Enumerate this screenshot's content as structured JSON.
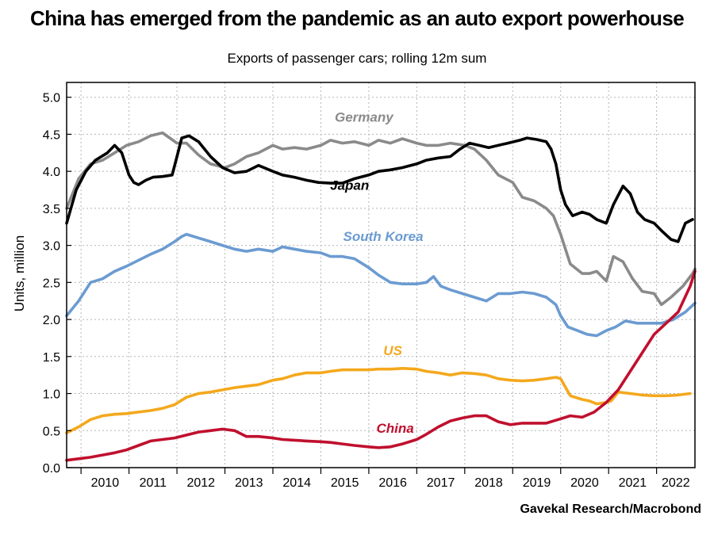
{
  "title": "China has emerged from the pandemic as an auto export powerhouse",
  "subtitle": "Exports of passenger cars; rolling 12m sum",
  "source": "Gavekal Research/Macrobond",
  "chart_data": {
    "type": "line",
    "title": "China has emerged from the pandemic as an auto export powerhouse",
    "subtitle": "Exports of passenger cars; rolling 12m sum",
    "ylabel": "Units, million",
    "xlabel": "",
    "ylim": [
      0,
      5.2
    ],
    "xlim": [
      2009.7,
      2022.8
    ],
    "yticks": [
      "0.0",
      "0.5",
      "1.0",
      "1.5",
      "2.0",
      "2.5",
      "3.0",
      "3.5",
      "4.0",
      "4.5",
      "5.0"
    ],
    "xticks": [
      "2010",
      "2011",
      "2012",
      "2013",
      "2014",
      "2015",
      "2016",
      "2017",
      "2018",
      "2019",
      "2020",
      "2021",
      "2022"
    ],
    "grid": true,
    "legend": "none (series labelled inline)",
    "series": [
      {
        "name": "Germany",
        "color": "#8a8a8a",
        "x": [
          2009.7,
          2009.95,
          2010.2,
          2010.45,
          2010.7,
          2010.95,
          2011.2,
          2011.45,
          2011.7,
          2011.85,
          2012.0,
          2012.2,
          2012.45,
          2012.7,
          2013.0,
          2013.2,
          2013.45,
          2013.7,
          2014.0,
          2014.2,
          2014.45,
          2014.7,
          2015.0,
          2015.2,
          2015.45,
          2015.7,
          2016.0,
          2016.2,
          2016.45,
          2016.7,
          2017.0,
          2017.2,
          2017.45,
          2017.7,
          2018.0,
          2018.2,
          2018.45,
          2018.7,
          2019.0,
          2019.2,
          2019.45,
          2019.7,
          2019.85,
          2020.0,
          2020.2,
          2020.45,
          2020.6,
          2020.75,
          2020.95,
          2021.1,
          2021.3,
          2021.5,
          2021.7,
          2021.95,
          2022.1,
          2022.3,
          2022.55,
          2022.75,
          2022.8
        ],
        "values": [
          3.5,
          3.9,
          4.1,
          4.15,
          4.25,
          4.35,
          4.4,
          4.48,
          4.52,
          4.45,
          4.38,
          4.38,
          4.22,
          4.1,
          4.05,
          4.1,
          4.2,
          4.25,
          4.35,
          4.3,
          4.32,
          4.3,
          4.35,
          4.42,
          4.38,
          4.4,
          4.35,
          4.42,
          4.38,
          4.44,
          4.38,
          4.35,
          4.35,
          4.38,
          4.35,
          4.3,
          4.15,
          3.95,
          3.85,
          3.65,
          3.6,
          3.5,
          3.4,
          3.15,
          2.75,
          2.62,
          2.62,
          2.65,
          2.52,
          2.85,
          2.78,
          2.55,
          2.38,
          2.35,
          2.2,
          2.3,
          2.45,
          2.62,
          2.68
        ]
      },
      {
        "name": "Japan",
        "color": "#000000",
        "x": [
          2009.7,
          2009.9,
          2010.1,
          2010.3,
          2010.55,
          2010.7,
          2010.85,
          2011.0,
          2011.1,
          2011.2,
          2011.35,
          2011.5,
          2011.7,
          2011.9,
          2012.0,
          2012.1,
          2012.25,
          2012.45,
          2012.7,
          2012.95,
          2013.2,
          2013.45,
          2013.7,
          2014.0,
          2014.2,
          2014.45,
          2014.7,
          2014.95,
          2015.2,
          2015.45,
          2015.7,
          2016.0,
          2016.2,
          2016.45,
          2016.7,
          2017.0,
          2017.2,
          2017.45,
          2017.7,
          2017.9,
          2018.1,
          2018.3,
          2018.5,
          2018.7,
          2018.9,
          2019.15,
          2019.3,
          2019.5,
          2019.7,
          2019.8,
          2019.9,
          2020.0,
          2020.1,
          2020.25,
          2020.45,
          2020.6,
          2020.75,
          2020.95,
          2021.1,
          2021.3,
          2021.45,
          2021.6,
          2021.75,
          2021.95,
          2022.1,
          2022.3,
          2022.45,
          2022.6,
          2022.75
        ],
        "values": [
          3.3,
          3.75,
          4.0,
          4.15,
          4.25,
          4.35,
          4.25,
          3.95,
          3.85,
          3.82,
          3.88,
          3.92,
          3.93,
          3.95,
          4.2,
          4.45,
          4.48,
          4.4,
          4.2,
          4.05,
          3.98,
          4.0,
          4.08,
          4.0,
          3.95,
          3.92,
          3.88,
          3.85,
          3.84,
          3.84,
          3.9,
          3.95,
          4.0,
          4.02,
          4.05,
          4.1,
          4.15,
          4.18,
          4.2,
          4.3,
          4.38,
          4.35,
          4.32,
          4.35,
          4.38,
          4.42,
          4.45,
          4.43,
          4.4,
          4.3,
          4.1,
          3.75,
          3.55,
          3.4,
          3.45,
          3.42,
          3.35,
          3.3,
          3.55,
          3.8,
          3.7,
          3.45,
          3.35,
          3.3,
          3.2,
          3.08,
          3.05,
          3.3,
          3.35
        ]
      },
      {
        "name": "South Korea",
        "color": "#6b9bd1",
        "x": [
          2009.7,
          2009.95,
          2010.2,
          2010.45,
          2010.7,
          2010.95,
          2011.2,
          2011.45,
          2011.7,
          2011.95,
          2012.1,
          2012.2,
          2012.45,
          2012.7,
          2012.95,
          2013.2,
          2013.45,
          2013.7,
          2014.0,
          2014.2,
          2014.45,
          2014.7,
          2015.0,
          2015.2,
          2015.45,
          2015.7,
          2016.0,
          2016.2,
          2016.45,
          2016.7,
          2017.0,
          2017.2,
          2017.35,
          2017.5,
          2017.7,
          2017.95,
          2018.2,
          2018.45,
          2018.7,
          2018.95,
          2019.2,
          2019.45,
          2019.7,
          2019.9,
          2020.0,
          2020.15,
          2020.35,
          2020.55,
          2020.75,
          2020.95,
          2021.15,
          2021.35,
          2021.6,
          2021.85,
          2022.1,
          2022.35,
          2022.6,
          2022.8
        ],
        "values": [
          2.05,
          2.25,
          2.5,
          2.55,
          2.65,
          2.72,
          2.8,
          2.88,
          2.95,
          3.05,
          3.12,
          3.15,
          3.1,
          3.05,
          3.0,
          2.95,
          2.92,
          2.95,
          2.92,
          2.98,
          2.95,
          2.92,
          2.9,
          2.85,
          2.85,
          2.82,
          2.7,
          2.6,
          2.5,
          2.48,
          2.48,
          2.5,
          2.58,
          2.45,
          2.4,
          2.35,
          2.3,
          2.25,
          2.35,
          2.35,
          2.37,
          2.35,
          2.3,
          2.2,
          2.05,
          1.9,
          1.85,
          1.8,
          1.78,
          1.85,
          1.9,
          1.98,
          1.95,
          1.95,
          1.95,
          2.0,
          2.1,
          2.22
        ]
      },
      {
        "name": "US",
        "color": "#f4a81d",
        "x": [
          2009.7,
          2009.95,
          2010.2,
          2010.45,
          2010.7,
          2010.95,
          2011.2,
          2011.45,
          2011.7,
          2011.95,
          2012.2,
          2012.45,
          2012.7,
          2012.95,
          2013.2,
          2013.45,
          2013.7,
          2014.0,
          2014.2,
          2014.45,
          2014.7,
          2015.0,
          2015.2,
          2015.45,
          2015.7,
          2016.0,
          2016.2,
          2016.45,
          2016.7,
          2017.0,
          2017.2,
          2017.45,
          2017.7,
          2017.95,
          2018.2,
          2018.45,
          2018.7,
          2018.95,
          2019.2,
          2019.45,
          2019.7,
          2019.9,
          2020.0,
          2020.2,
          2020.45,
          2020.6,
          2020.75,
          2020.95,
          2021.05,
          2021.2,
          2021.45,
          2021.7,
          2021.95,
          2022.2,
          2022.45,
          2022.7
        ],
        "values": [
          0.47,
          0.55,
          0.65,
          0.7,
          0.72,
          0.73,
          0.75,
          0.77,
          0.8,
          0.85,
          0.95,
          1.0,
          1.02,
          1.05,
          1.08,
          1.1,
          1.12,
          1.18,
          1.2,
          1.25,
          1.28,
          1.28,
          1.3,
          1.32,
          1.32,
          1.32,
          1.33,
          1.33,
          1.34,
          1.33,
          1.3,
          1.28,
          1.25,
          1.28,
          1.27,
          1.25,
          1.2,
          1.18,
          1.17,
          1.18,
          1.2,
          1.22,
          1.2,
          0.97,
          0.92,
          0.9,
          0.86,
          0.88,
          0.9,
          1.02,
          1.0,
          0.98,
          0.97,
          0.97,
          0.98,
          1.0
        ]
      },
      {
        "name": "China",
        "color": "#c0102e",
        "x": [
          2009.7,
          2009.95,
          2010.2,
          2010.45,
          2010.7,
          2010.95,
          2011.2,
          2011.45,
          2011.7,
          2011.95,
          2012.2,
          2012.45,
          2012.7,
          2012.95,
          2013.2,
          2013.45,
          2013.7,
          2014.0,
          2014.2,
          2014.45,
          2014.7,
          2015.0,
          2015.2,
          2015.45,
          2015.7,
          2016.0,
          2016.2,
          2016.45,
          2016.7,
          2017.0,
          2017.2,
          2017.45,
          2017.7,
          2017.95,
          2018.2,
          2018.45,
          2018.7,
          2018.95,
          2019.2,
          2019.45,
          2019.7,
          2019.95,
          2020.2,
          2020.45,
          2020.7,
          2020.95,
          2021.2,
          2021.45,
          2021.7,
          2021.95,
          2022.2,
          2022.45,
          2022.7,
          2022.8
        ],
        "values": [
          0.1,
          0.12,
          0.14,
          0.17,
          0.2,
          0.24,
          0.3,
          0.36,
          0.38,
          0.4,
          0.44,
          0.48,
          0.5,
          0.52,
          0.5,
          0.42,
          0.42,
          0.4,
          0.38,
          0.37,
          0.36,
          0.35,
          0.34,
          0.32,
          0.3,
          0.28,
          0.27,
          0.28,
          0.32,
          0.38,
          0.45,
          0.55,
          0.63,
          0.67,
          0.7,
          0.7,
          0.62,
          0.58,
          0.6,
          0.6,
          0.6,
          0.65,
          0.7,
          0.68,
          0.75,
          0.88,
          1.05,
          1.3,
          1.55,
          1.8,
          1.95,
          2.1,
          2.45,
          2.65
        ]
      }
    ]
  }
}
